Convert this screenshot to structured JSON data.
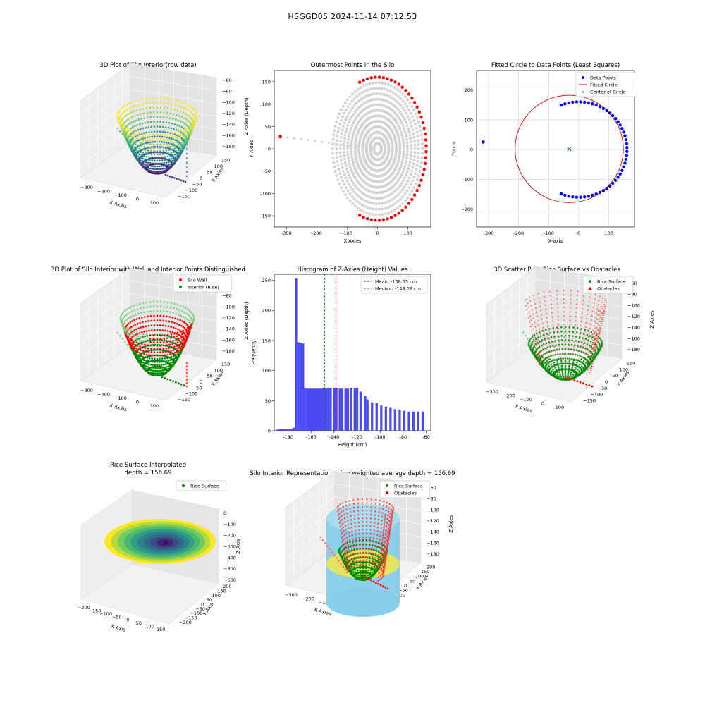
{
  "figure_title": "HSGGD05 2024-11-14 07:12:53",
  "colors": {
    "data_blue": "#0000ee",
    "fit_red": "#dd0000",
    "center_green": "#007700",
    "grey": "#cfcfcf",
    "hist_blue": "#4a4af5",
    "wall_red": "#ff0000",
    "rice_green": "#008800",
    "cylinder_blue": "#87ceeb",
    "surface_yellow": "#e6e65a"
  },
  "chart_data": [
    {
      "type": "scatter3d",
      "title": "3D Plot of Silo Interior(row data)",
      "xlabel": "X Axies",
      "ylabel": "Y Axies",
      "zlabel": "Z Axies (Depth)",
      "xticks": [
        "−300",
        "−200",
        "−100",
        "0",
        "100"
      ],
      "yticks": [
        "−150",
        "−100",
        "−50",
        "0",
        "50",
        "100",
        "150"
      ],
      "zticks": [
        "−60",
        "−80",
        "−100",
        "−120",
        "−140",
        "−160",
        "−180"
      ],
      "colormap": "viridis"
    },
    {
      "type": "scatter",
      "title": "Outermost Points in the Silo",
      "xlabel": "X Axies",
      "ylabel": "Y Axies",
      "xlim": [
        -340,
        175
      ],
      "ylim": [
        -175,
        175
      ],
      "xticks": [
        -300,
        -200,
        -100,
        0,
        100
      ],
      "yticks": [
        -150,
        -100,
        -50,
        0,
        50,
        100,
        150
      ],
      "outer_radius": 160,
      "outlier": [
        -320,
        27
      ],
      "series": [
        {
          "color": "#ff0000",
          "role": "outermost"
        },
        {
          "color": "#d3d3d3",
          "role": "interior"
        }
      ]
    },
    {
      "type": "scatter",
      "title": "Fitted Circle to Data Points (Least Squares)",
      "xlabel": "X-axis",
      "ylabel": "Y-axis",
      "xlim": [
        -340,
        185
      ],
      "ylim": [
        -260,
        265
      ],
      "xticks": [
        -300,
        -200,
        -100,
        0,
        100
      ],
      "yticks": [
        -200,
        -100,
        0,
        100,
        200
      ],
      "fit_center": [
        -32,
        2
      ],
      "fit_radius": 180,
      "outlier": [
        -318,
        25
      ],
      "legend": [
        "Data Points",
        "Fitted Circle",
        "Center of Circle"
      ]
    },
    {
      "type": "scatter3d",
      "title": "3D Plot of Silo Interior with Wall and Interior Points Distinguished",
      "xlabel": "X Axies",
      "ylabel": "Y Axies",
      "zlabel": "Z Axies (Depth)",
      "xticks": [
        "−300",
        "−200",
        "−100",
        "0",
        "100"
      ],
      "yticks": [
        "−150",
        "−100",
        "−50",
        "0",
        "50",
        "100",
        "150"
      ],
      "zticks": [
        "−60",
        "−80",
        "−100",
        "−120",
        "−140",
        "−160",
        "−180"
      ],
      "legend": [
        "Silo Wall",
        "Interior (Rice)"
      ]
    },
    {
      "type": "bar",
      "title": "Histogram of Z-Axies (Height) Values",
      "xlabel": "Height (cm)",
      "ylabel": "Frequency",
      "xlim": [
        -192,
        -56
      ],
      "ylim": [
        0,
        260
      ],
      "xticks": [
        -180,
        -160,
        -140,
        -120,
        -100,
        -80,
        -60
      ],
      "yticks": [
        0,
        50,
        100,
        150,
        200,
        250
      ],
      "bins": [
        {
          "x0": -190,
          "x1": -188,
          "v": 2
        },
        {
          "x0": -188,
          "x1": -185,
          "v": 3
        },
        {
          "x0": -185,
          "x1": -182,
          "v": 3
        },
        {
          "x0": -182,
          "x1": -179,
          "v": 3
        },
        {
          "x0": -179,
          "x1": -176,
          "v": 3
        },
        {
          "x0": -176,
          "x1": -174,
          "v": 5
        },
        {
          "x0": -174,
          "x1": -172,
          "v": 253
        },
        {
          "x0": -172,
          "x1": -170,
          "v": 147
        },
        {
          "x0": -170,
          "x1": -168,
          "v": 146
        },
        {
          "x0": -168,
          "x1": -166,
          "v": 145
        },
        {
          "x0": -166,
          "x1": -164,
          "v": 71
        },
        {
          "x0": -164,
          "x1": -150,
          "v": 70
        },
        {
          "x0": -150,
          "x1": -148,
          "v": 71
        },
        {
          "x0": -148,
          "x1": -146,
          "v": 70
        },
        {
          "x0": -146,
          "x1": -144,
          "v": 71
        },
        {
          "x0": -144,
          "x1": -142,
          "v": 71
        },
        {
          "x0": -141,
          "x1": -137,
          "v": 71
        },
        {
          "x0": -136,
          "x1": -132,
          "v": 70
        },
        {
          "x0": -131,
          "x1": -127,
          "v": 70
        },
        {
          "x0": -126,
          "x1": -124,
          "v": 71
        },
        {
          "x0": -123,
          "x1": -119,
          "v": 71
        },
        {
          "x0": -118,
          "x1": -116,
          "v": 65
        },
        {
          "x0": -114,
          "x1": -112,
          "v": 58
        },
        {
          "x0": -112,
          "x1": -110,
          "v": 52
        },
        {
          "x0": -108,
          "x1": -106,
          "v": 47
        },
        {
          "x0": -104,
          "x1": -102,
          "v": 46
        },
        {
          "x0": -100,
          "x1": -98,
          "v": 42
        },
        {
          "x0": -96,
          "x1": -94,
          "v": 40
        },
        {
          "x0": -92,
          "x1": -90,
          "v": 38
        },
        {
          "x0": -88,
          "x1": -86,
          "v": 36
        },
        {
          "x0": -84,
          "x1": -82,
          "v": 35
        },
        {
          "x0": -80,
          "x1": -78,
          "v": 33
        },
        {
          "x0": -76,
          "x1": -74,
          "v": 32
        },
        {
          "x0": -72,
          "x1": -70,
          "v": 32
        },
        {
          "x0": -68,
          "x1": -66,
          "v": 32
        },
        {
          "x0": -64,
          "x1": -62,
          "v": 32
        }
      ],
      "mean": -138.35,
      "median": -148.09,
      "legend": [
        "Mean: -138.35 cm",
        "Median: -148.09 cm"
      ]
    },
    {
      "type": "scatter3d",
      "title": "3D Scatter Plot: Rice Surface vs Obstacles",
      "xlabel": "X Axies",
      "ylabel": "Y Axies",
      "zlabel": "Z Axies",
      "xticks": [
        "−300",
        "−200",
        "−100",
        "0",
        "100"
      ],
      "yticks": [
        "−150",
        "−100",
        "−50",
        "0",
        "50",
        "100",
        "150"
      ],
      "zticks": [
        "−60",
        "−80",
        "−100",
        "−120",
        "−140",
        "−160",
        "−180"
      ],
      "legend": [
        "Rice Surface",
        "Obstacles"
      ]
    },
    {
      "type": "surface3d",
      "title": "Rice Surface Interpolated",
      "subtitle": "depth = 156.69",
      "xlabel": "X Axis",
      "ylabel": "Y Axis",
      "zlabel": "Z Axis",
      "xticks": [
        "−200",
        "−150",
        "−100",
        "−50",
        "0",
        "50",
        "100",
        "150"
      ],
      "yticks": [
        "−200",
        "−150",
        "−100",
        "−50",
        "0",
        "50",
        "100",
        "150",
        "200"
      ],
      "zticks": [
        "0",
        "−100",
        "−200",
        "−300",
        "−400",
        "−500",
        "−600"
      ],
      "legend": [
        "Rice Surface"
      ]
    },
    {
      "type": "scatter3d",
      "title": "Silo Interior Representation using weighted average depth = 156.69",
      "xlabel": "X Axies",
      "ylabel": "Y Axies",
      "zlabel": "Z Axies",
      "xticks": [
        "−300",
        "−200",
        "−100",
        "0",
        "100"
      ],
      "yticks": [
        "−200",
        "−150",
        "−100",
        "−50",
        "0",
        "50",
        "100",
        "150",
        "200"
      ],
      "zticks": [
        "−60",
        "−80",
        "−100",
        "−120",
        "−140",
        "−160",
        "−180"
      ],
      "legend": [
        "Rice Surface",
        "Obstacles"
      ]
    }
  ]
}
